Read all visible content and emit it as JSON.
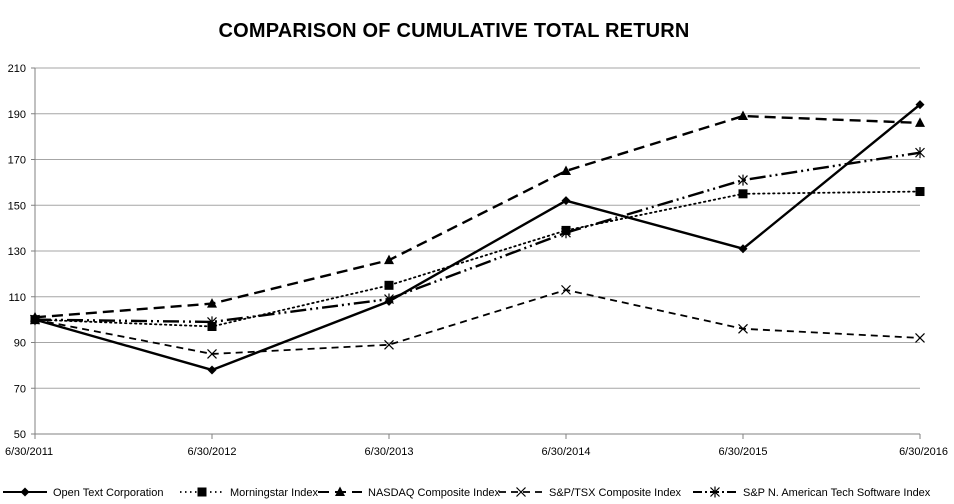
{
  "chart_data": {
    "type": "line",
    "title": "COMPARISON OF CUMULATIVE TOTAL RETURN",
    "xlabel": "",
    "ylabel": "",
    "categories": [
      "6/30/2011",
      "6/30/2012",
      "6/30/2013",
      "6/30/2014",
      "6/30/2015",
      "6/30/2016"
    ],
    "ylim": [
      50,
      210
    ],
    "yticks": [
      50,
      70,
      90,
      110,
      130,
      150,
      170,
      190,
      210
    ],
    "grid": true,
    "legend": "bottom",
    "series": [
      {
        "name": "Open Text Corporation",
        "values": [
          100,
          78,
          108,
          152,
          131,
          194
        ],
        "dash": "solid",
        "marker": "diamond",
        "width": 2.4
      },
      {
        "name": "Morningstar Index",
        "values": [
          100,
          97,
          115,
          139,
          155,
          156
        ],
        "dash": "dotted",
        "marker": "square",
        "width": 1.8
      },
      {
        "name": "NASDAQ Composite Index",
        "values": [
          101,
          107,
          126,
          165,
          189,
          186
        ],
        "dash": "dashed",
        "marker": "triangle",
        "width": 2.4
      },
      {
        "name": "S&P/TSX Composite Index",
        "values": [
          100,
          85,
          89,
          113,
          96,
          92
        ],
        "dash": "dashed-short",
        "marker": "x",
        "width": 1.8
      },
      {
        "name": "S&P N. American Tech Software Index",
        "values": [
          100,
          99,
          109,
          138,
          161,
          173
        ],
        "dash": "dash-dot-dot",
        "marker": "asterisk",
        "width": 2.4
      }
    ]
  }
}
